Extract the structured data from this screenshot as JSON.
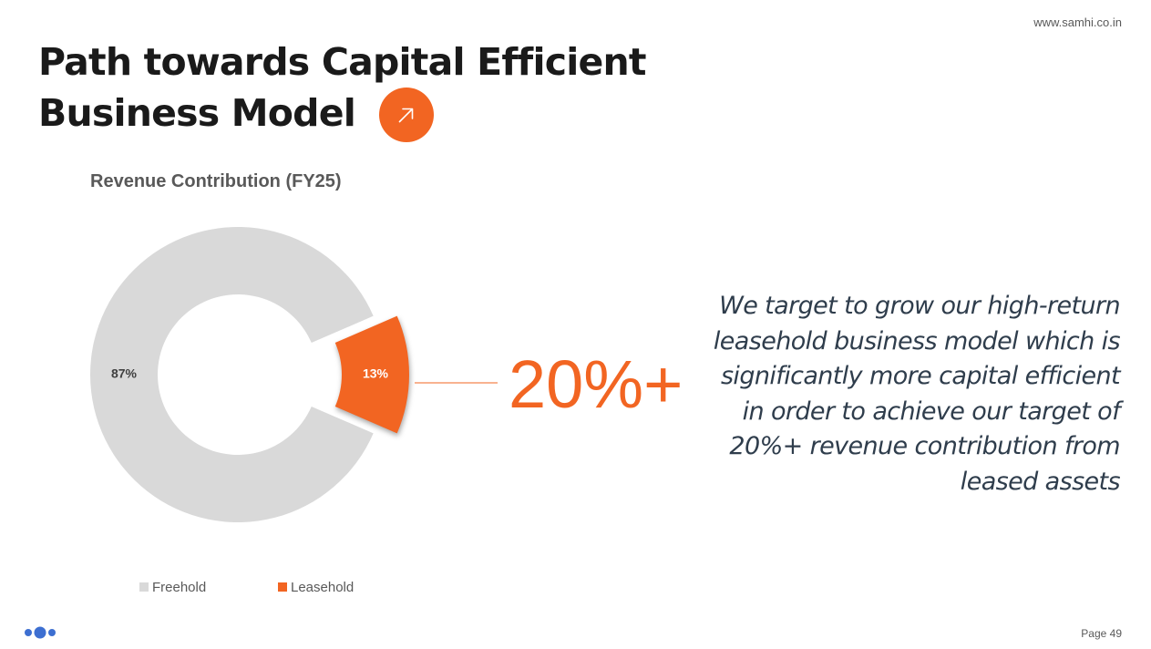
{
  "header": {
    "site_url": "www.samhi.co.in",
    "title_line1": "Path towards Capital Efficient",
    "title_line2": "Business Model",
    "title_icon": "arrow-up-right-icon"
  },
  "chart_data": {
    "type": "pie",
    "title": "Revenue Contribution (FY25)",
    "categories": [
      "Freehold",
      "Leasehold"
    ],
    "values": [
      87,
      13
    ],
    "data_labels": [
      "87%",
      "13%"
    ],
    "colors": [
      "#d9d9d9",
      "#f26522"
    ],
    "exploded": "Leasehold",
    "legend": "bottom",
    "target_label": "20%+"
  },
  "statement": "We target to grow our high-return leasehold business model which is significantly more capital efficient in order to achieve our target of 20%+ revenue contribution from leased assets",
  "footer": {
    "logo": "three-dots-logo",
    "page": "Page 49"
  },
  "colors": {
    "accent": "#f26522",
    "freehold": "#d9d9d9",
    "logo_blue": "#3d6fd1"
  }
}
